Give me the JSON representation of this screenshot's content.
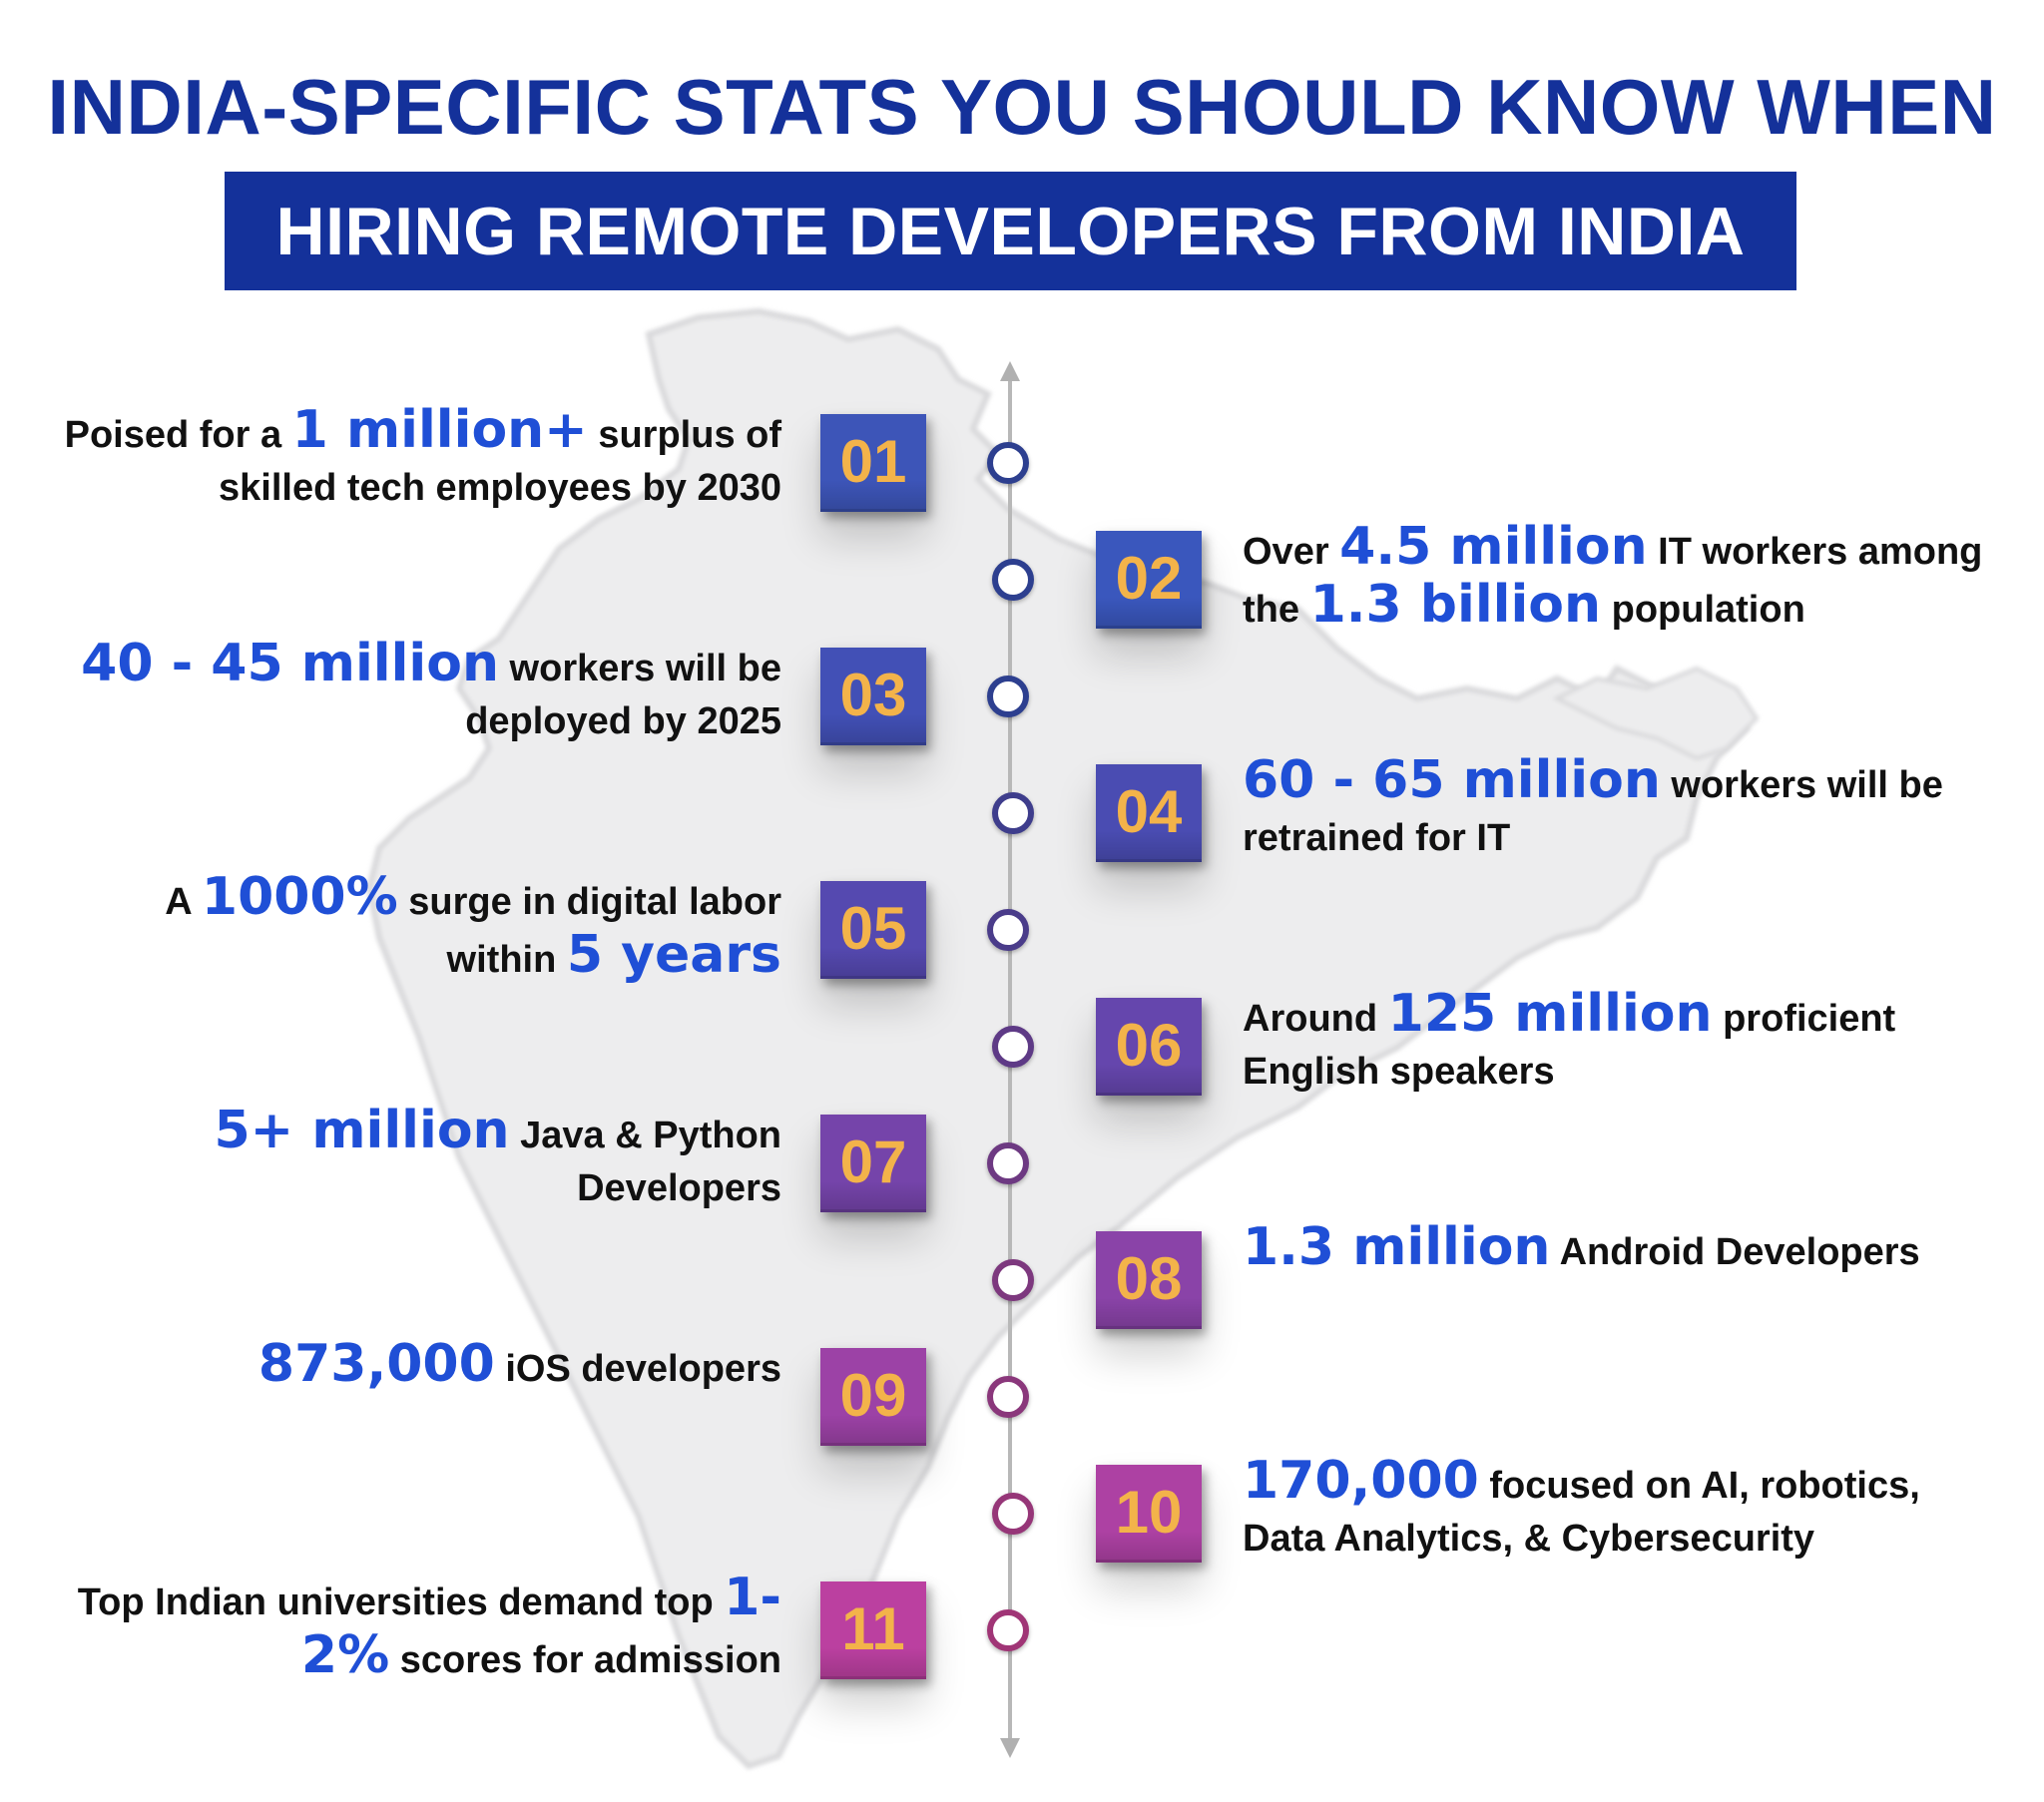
{
  "title": {
    "line1": "INDIA-SPECIFIC STATS YOU SHOULD KNOW WHEN",
    "line2": "HIRING REMOTE DEVELOPERS FROM INDIA"
  },
  "colors": {
    "title_blue": "#14319a",
    "highlight_blue": "#1f4fd6",
    "number_gold": "#f3b34a"
  },
  "stats": [
    {
      "number": "01",
      "side": "left",
      "color": "#3d55b8",
      "pre": "Poised for a ",
      "highlight": "1 million+",
      "mid": " surplus of skilled tech employees by 2030",
      "highlight2": "",
      "post": ""
    },
    {
      "number": "02",
      "side": "right",
      "color": "#3a57bd",
      "pre": "Over ",
      "highlight": "4.5 million",
      "mid": " IT workers among the ",
      "highlight2": "1.3 billion",
      "post": " population"
    },
    {
      "number": "03",
      "side": "left",
      "color": "#4250b6",
      "pre": "",
      "highlight": "40 - 45 million",
      "mid": " workers will be deployed by 2025",
      "highlight2": "",
      "post": ""
    },
    {
      "number": "04",
      "side": "right",
      "color": "#4a4cb2",
      "pre": "",
      "highlight": "60 - 65 million",
      "mid": " workers will be retrained for IT",
      "highlight2": "",
      "post": ""
    },
    {
      "number": "05",
      "side": "left",
      "color": "#5549b0",
      "pre": "A ",
      "highlight": "1000%",
      "mid": " surge in digital labor within ",
      "highlight2": "5 years",
      "post": ""
    },
    {
      "number": "06",
      "side": "right",
      "color": "#6546ad",
      "pre": "Around ",
      "highlight": "125 million",
      "mid": " proficient English speakers",
      "highlight2": "",
      "post": ""
    },
    {
      "number": "07",
      "side": "left",
      "color": "#7544aa",
      "pre": "",
      "highlight": "5+ million",
      "mid": " Java & Python Developers",
      "highlight2": "",
      "post": ""
    },
    {
      "number": "08",
      "side": "right",
      "color": "#8a43a8",
      "pre": "",
      "highlight": "1.3 million",
      "mid": " Android Developers",
      "highlight2": "",
      "post": ""
    },
    {
      "number": "09",
      "side": "left",
      "color": "#9c42a6",
      "pre": "",
      "highlight": "873,000",
      "mid": " iOS developers",
      "highlight2": "",
      "post": ""
    },
    {
      "number": "10",
      "side": "right",
      "color": "#ad41a3",
      "pre": "",
      "highlight": "170,000",
      "mid": " focused on AI, robotics, Data Analytics, & Cybersecurity",
      "highlight2": "",
      "post": ""
    },
    {
      "number": "11",
      "side": "left",
      "color": "#bb40a0",
      "pre": "Top Indian universities demand top ",
      "highlight": "1-2%",
      "mid": " scores for admission",
      "highlight2": "",
      "post": ""
    }
  ]
}
